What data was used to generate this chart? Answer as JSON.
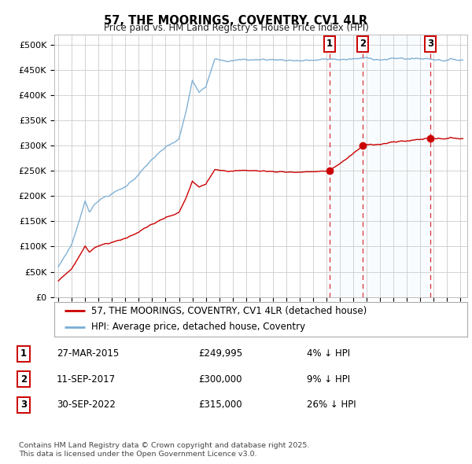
{
  "title": "57, THE MOORINGS, COVENTRY, CV1 4LR",
  "subtitle": "Price paid vs. HM Land Registry's House Price Index (HPI)",
  "background_color": "#ffffff",
  "plot_bg_color": "#ffffff",
  "grid_color": "#cccccc",
  "ylim": [
    0,
    520000
  ],
  "yticks": [
    0,
    50000,
    100000,
    150000,
    200000,
    250000,
    300000,
    350000,
    400000,
    450000,
    500000
  ],
  "ytick_labels": [
    "£0",
    "£50K",
    "£100K",
    "£150K",
    "£200K",
    "£250K",
    "£300K",
    "£350K",
    "£400K",
    "£450K",
    "£500K"
  ],
  "hpi_color": "#7aadd4",
  "hpi_fill_color": "#ddeeff",
  "price_color": "#cc0000",
  "vline_color": "#cc0000",
  "annotation_box_color": "#cc0000",
  "sales": [
    {
      "date_num": 2015.23,
      "price": 249995,
      "label": "1"
    },
    {
      "date_num": 2017.7,
      "price": 300000,
      "label": "2"
    },
    {
      "date_num": 2022.75,
      "price": 315000,
      "label": "3"
    }
  ],
  "legend_label_property": "57, THE MOORINGS, COVENTRY, CV1 4LR (detached house)",
  "legend_label_hpi": "HPI: Average price, detached house, Coventry",
  "legend_color_property": "#cc0000",
  "legend_color_hpi": "#7aadd4",
  "table_rows": [
    {
      "num": "1",
      "date": "27-MAR-2015",
      "price": "£249,995",
      "note": "4% ↓ HPI"
    },
    {
      "num": "2",
      "date": "11-SEP-2017",
      "price": "£300,000",
      "note": "9% ↓ HPI"
    },
    {
      "num": "3",
      "date": "30-SEP-2022",
      "price": "£315,000",
      "note": "26% ↓ HPI"
    }
  ],
  "footer": "Contains HM Land Registry data © Crown copyright and database right 2025.\nThis data is licensed under the Open Government Licence v3.0.",
  "xlim_left": 1994.7,
  "xlim_right": 2025.5
}
